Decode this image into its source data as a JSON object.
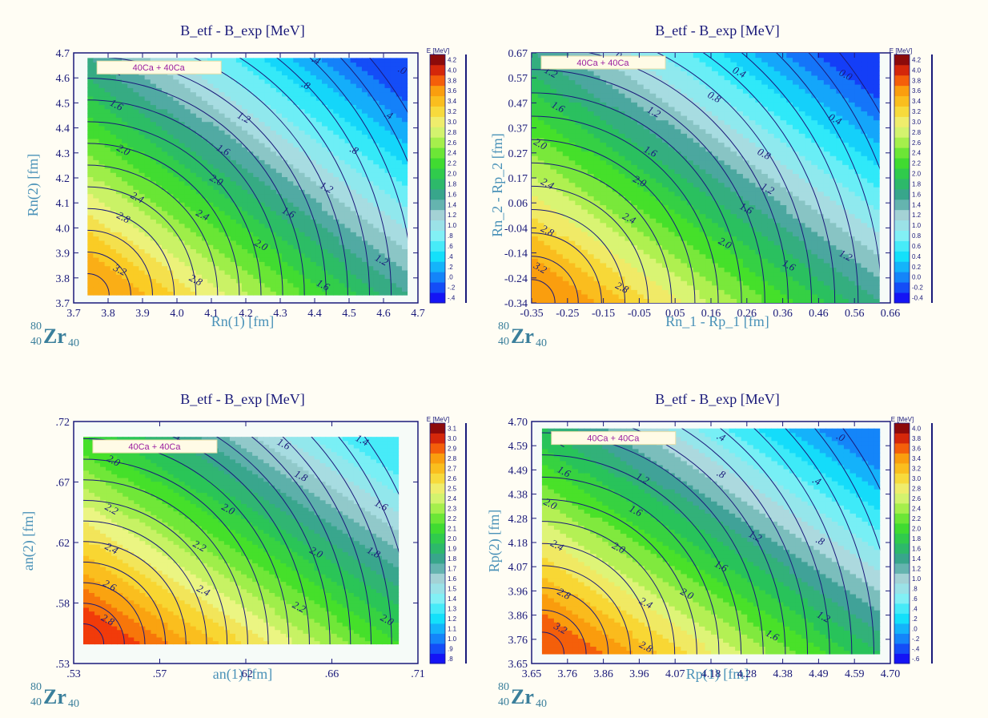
{
  "chart_data": [
    {
      "type": "heatmap",
      "subtype": "filled-contour",
      "title": "B_etf - B_exp [MeV]",
      "xlabel": "Rn(1) [fm]",
      "ylabel": "Rn(2) [fm]",
      "xticks": [
        "3.7",
        "3.8",
        "3.9",
        "4.0",
        "4.1",
        "4.2",
        "4.3",
        "4.4",
        "4.5",
        "4.6",
        "4.7"
      ],
      "yticks": [
        "3.7",
        "3.8",
        "3.9",
        "4.0",
        "4.1",
        "4.2",
        "4.3",
        "4.4",
        "4.5",
        "4.6",
        "4.7"
      ],
      "xlim": [
        3.7,
        4.7
      ],
      "ylim": [
        3.7,
        4.7
      ],
      "data_region": {
        "x": [
          3.74,
          4.67
        ],
        "y": [
          3.73,
          4.68
        ]
      },
      "legend_text": "40Ca + 40Ca",
      "colorbar_title": "E [MeV]",
      "colorbar_labels": [
        "-.4",
        "-.2",
        ".0",
        ".2",
        ".4",
        ".6",
        ".8",
        "1.0",
        "1.2",
        "1.4",
        "1.6",
        "1.8",
        "2.0",
        "2.2",
        "2.4",
        "2.6",
        "2.8",
        "3.0",
        "3.2",
        "3.4",
        "3.6",
        "3.8",
        "4.0",
        "4.2"
      ],
      "colorbar_range": [
        -0.4,
        4.2
      ],
      "value_range": [
        -0.2,
        3.5
      ],
      "contour_labels": [
        {
          "text": "1.2",
          "value": 1.2,
          "x": 3.82,
          "y": 4.62
        },
        {
          "text": "1.6",
          "value": 1.6,
          "x": 3.82,
          "y": 4.48
        },
        {
          "text": "2.0",
          "value": 2.0,
          "x": 3.84,
          "y": 4.3
        },
        {
          "text": "2.4",
          "value": 2.4,
          "x": 3.88,
          "y": 4.11
        },
        {
          "text": "2.8",
          "value": 2.8,
          "x": 3.84,
          "y": 4.03
        },
        {
          "text": "3.2",
          "value": 3.2,
          "x": 3.83,
          "y": 3.82
        },
        {
          "text": ".4",
          "value": 0.4,
          "x": 4.4,
          "y": 4.66
        },
        {
          "text": ".8",
          "value": 0.8,
          "x": 4.37,
          "y": 4.56
        },
        {
          "text": "1.2",
          "value": 1.2,
          "x": 4.19,
          "y": 4.43
        },
        {
          "text": "1.6",
          "value": 1.6,
          "x": 4.13,
          "y": 4.3
        },
        {
          "text": "2.0",
          "value": 2.0,
          "x": 4.11,
          "y": 4.18
        },
        {
          "text": "2.4",
          "value": 2.4,
          "x": 4.07,
          "y": 4.04
        },
        {
          "text": "2.8",
          "value": 2.8,
          "x": 4.05,
          "y": 3.78
        },
        {
          "text": ".0",
          "value": 0.0,
          "x": 4.65,
          "y": 4.62
        },
        {
          "text": ".4",
          "value": 0.4,
          "x": 4.61,
          "y": 4.44
        },
        {
          "text": ".8",
          "value": 0.8,
          "x": 4.51,
          "y": 4.3
        },
        {
          "text": "1.2",
          "value": 1.2,
          "x": 4.43,
          "y": 4.15
        },
        {
          "text": "1.6",
          "value": 1.6,
          "x": 4.32,
          "y": 4.05
        },
        {
          "text": "2.0",
          "value": 2.0,
          "x": 4.24,
          "y": 3.92
        },
        {
          "text": "1.2",
          "value": 1.2,
          "x": 4.59,
          "y": 3.86
        },
        {
          "text": "1.6",
          "value": 1.6,
          "x": 4.42,
          "y": 3.76
        }
      ],
      "nucleus": {
        "mass": "80",
        "charge": "40",
        "symbol": "Zr",
        "neutron": "40"
      }
    },
    {
      "type": "heatmap",
      "subtype": "filled-contour",
      "title": "B_etf - B_exp [MeV]",
      "xlabel": "Rn_1 - Rp_1  [fm]",
      "ylabel": "Rn_2 - Rp_2  [fm]",
      "xticks": [
        "-0.35",
        "-0.25",
        "-0.15",
        "-0.05",
        "0.05",
        "0.16",
        "0.26",
        "0.36",
        "0.46",
        "0.56",
        "0.66"
      ],
      "yticks": [
        "-0.34",
        "-0.24",
        "-0.14",
        "-0.04",
        "0.06",
        "0.17",
        "0.27",
        "0.37",
        "0.47",
        "0.57",
        "0.67"
      ],
      "xlim": [
        -0.35,
        0.66
      ],
      "ylim": [
        -0.34,
        0.67
      ],
      "data_region": {
        "x": [
          -0.35,
          0.63
        ],
        "y": [
          -0.34,
          0.67
        ]
      },
      "legend_text": "40Ca + 40Ca",
      "colorbar_title": "E [MeV]",
      "colorbar_labels": [
        "-0.4",
        "-0.2",
        "0.0",
        "0.2",
        "0.4",
        "0.6",
        "0.8",
        "1.0",
        "1.2",
        "1.4",
        "1.6",
        "1.8",
        "2.0",
        "2.2",
        "2.4",
        "2.6",
        "2.8",
        "3.0",
        "3.2",
        "3.4",
        "3.6",
        "3.8",
        "4.0",
        "4.2"
      ],
      "colorbar_range": [
        -0.4,
        4.2
      ],
      "value_range": [
        -0.25,
        3.6
      ],
      "contour_labels": [
        {
          "text": "1.2",
          "value": 1.2,
          "x": -0.3,
          "y": 0.58
        },
        {
          "text": "1.6",
          "value": 1.6,
          "x": -0.28,
          "y": 0.44
        },
        {
          "text": "2.0",
          "value": 2.0,
          "x": -0.33,
          "y": 0.29
        },
        {
          "text": "2.4",
          "value": 2.4,
          "x": -0.31,
          "y": 0.13
        },
        {
          "text": "2.8",
          "value": 2.8,
          "x": -0.31,
          "y": -0.06
        },
        {
          "text": "3.2",
          "value": 3.2,
          "x": -0.33,
          "y": -0.21
        },
        {
          "text": "0.8",
          "value": 0.8,
          "x": -0.1,
          "y": 0.64
        },
        {
          "text": "1.2",
          "value": 1.2,
          "x": -0.01,
          "y": 0.42
        },
        {
          "text": "1.6",
          "value": 1.6,
          "x": -0.02,
          "y": 0.26
        },
        {
          "text": "2.0",
          "value": 2.0,
          "x": -0.05,
          "y": 0.14
        },
        {
          "text": "2.4",
          "value": 2.4,
          "x": -0.08,
          "y": -0.01
        },
        {
          "text": "2.8",
          "value": 2.8,
          "x": -0.1,
          "y": -0.29
        },
        {
          "text": "0.4",
          "value": 0.4,
          "x": 0.23,
          "y": 0.58
        },
        {
          "text": "0.8",
          "value": 0.8,
          "x": 0.16,
          "y": 0.48
        },
        {
          "text": "0.0",
          "value": 0.0,
          "x": 0.53,
          "y": 0.57
        },
        {
          "text": "0.4",
          "value": 0.4,
          "x": 0.5,
          "y": 0.39
        },
        {
          "text": "0.8",
          "value": 0.8,
          "x": 0.3,
          "y": 0.25
        },
        {
          "text": "1.2",
          "value": 1.2,
          "x": 0.31,
          "y": 0.11
        },
        {
          "text": "1.6",
          "value": 1.6,
          "x": 0.25,
          "y": 0.03
        },
        {
          "text": "2.0",
          "value": 2.0,
          "x": 0.19,
          "y": -0.11
        },
        {
          "text": "1.2",
          "value": 1.2,
          "x": 0.53,
          "y": -0.16
        },
        {
          "text": "1.6",
          "value": 1.6,
          "x": 0.37,
          "y": -0.2
        }
      ],
      "nucleus": {
        "mass": "80",
        "charge": "40",
        "symbol": "Zr",
        "neutron": "40"
      }
    },
    {
      "type": "heatmap",
      "subtype": "filled-contour",
      "title": "B_etf - B_exp [MeV]",
      "xlabel": "an(1) [fm]",
      "ylabel": "an(2) [fm]",
      "xticks": [
        ".53",
        ".57",
        ".62",
        ".66",
        ".71"
      ],
      "yticks": [
        ".53",
        ".58",
        ".62",
        ".67",
        ".72"
      ],
      "xlim": [
        0.53,
        0.71
      ],
      "ylim": [
        0.53,
        0.72
      ],
      "data_region": {
        "x": [
          0.535,
          0.7
        ],
        "y": [
          0.545,
          0.708
        ]
      },
      "legend_text": "40Ca + 40Ca",
      "colorbar_title": "E [MeV]",
      "colorbar_labels": [
        ".8",
        ".9",
        "1.0",
        "1.1",
        "1.2",
        "1.3",
        "1.4",
        "1.5",
        "1.6",
        "1.7",
        "1.8",
        "1.9",
        "2.0",
        "2.1",
        "2.2",
        "2.3",
        "2.4",
        "2.5",
        "2.6",
        "2.7",
        "2.8",
        "2.9",
        "3.0",
        "3.1"
      ],
      "colorbar_range": [
        0.8,
        3.1
      ],
      "value_range": [
        1.3,
        2.95
      ],
      "contour_labels": [
        {
          "text": "1.8",
          "value": 1.8,
          "x": 0.585,
          "y": 0.702
        },
        {
          "text": "1.6",
          "value": 1.6,
          "x": 0.639,
          "y": 0.7
        },
        {
          "text": "1.4",
          "value": 1.4,
          "x": 0.68,
          "y": 0.703
        },
        {
          "text": "2.0",
          "value": 2.0,
          "x": 0.55,
          "y": 0.687
        },
        {
          "text": "1.8",
          "value": 1.8,
          "x": 0.648,
          "y": 0.675
        },
        {
          "text": "1.6",
          "value": 1.6,
          "x": 0.69,
          "y": 0.652
        },
        {
          "text": "2.2",
          "value": 2.2,
          "x": 0.549,
          "y": 0.649
        },
        {
          "text": "2.0",
          "value": 2.0,
          "x": 0.61,
          "y": 0.649
        },
        {
          "text": "1.8",
          "value": 1.8,
          "x": 0.686,
          "y": 0.615
        },
        {
          "text": "2.4",
          "value": 2.4,
          "x": 0.549,
          "y": 0.618
        },
        {
          "text": "2.2",
          "value": 2.2,
          "x": 0.595,
          "y": 0.62
        },
        {
          "text": "2.0",
          "value": 2.0,
          "x": 0.656,
          "y": 0.615
        },
        {
          "text": "2.6",
          "value": 2.6,
          "x": 0.548,
          "y": 0.589
        },
        {
          "text": "2.4",
          "value": 2.4,
          "x": 0.597,
          "y": 0.585
        },
        {
          "text": "2.2",
          "value": 2.2,
          "x": 0.647,
          "y": 0.572
        },
        {
          "text": "2.0",
          "value": 2.0,
          "x": 0.693,
          "y": 0.562
        },
        {
          "text": "2.8",
          "value": 2.8,
          "x": 0.547,
          "y": 0.562
        }
      ],
      "nucleus": {
        "mass": "80",
        "charge": "40",
        "symbol": "Zr",
        "neutron": "40"
      }
    },
    {
      "type": "heatmap",
      "subtype": "filled-contour",
      "title": "B_etf - B_exp [MeV]",
      "xlabel": "Rp(1) [fm]",
      "ylabel": "Rp(2) [fm]",
      "xticks": [
        "3.65",
        "3.76",
        "3.86",
        "3.96",
        "4.07",
        "4.18",
        "4.28",
        "4.38",
        "4.49",
        "4.59",
        "4.70"
      ],
      "yticks": [
        "3.65",
        "3.76",
        "3.86",
        "3.96",
        "4.07",
        "4.18",
        "4.28",
        "4.38",
        "4.49",
        "4.59",
        "4.70"
      ],
      "xlim": [
        3.65,
        4.7
      ],
      "ylim": [
        3.65,
        4.7
      ],
      "data_region": {
        "x": [
          3.68,
          4.67
        ],
        "y": [
          3.69,
          4.67
        ]
      },
      "legend_text": "40Ca + 40Ca",
      "colorbar_title": "E [MeV]",
      "colorbar_labels": [
        "-.6",
        "-.4",
        "-.2",
        ".0",
        ".2",
        ".4",
        ".6",
        ".8",
        "1.0",
        "1.2",
        "1.4",
        "1.6",
        "1.8",
        "2.0",
        "2.2",
        "2.4",
        "2.6",
        "2.8",
        "3.0",
        "3.2",
        "3.4",
        "3.6",
        "3.8",
        "4.0"
      ],
      "colorbar_range": [
        -0.6,
        4.0
      ],
      "value_range": [
        -0.2,
        3.6
      ],
      "contour_labels": [
        {
          "text": "1.2",
          "value": 1.2,
          "x": 3.73,
          "y": 4.6
        },
        {
          "text": "1.6",
          "value": 1.6,
          "x": 3.74,
          "y": 4.47
        },
        {
          "text": "2.0",
          "value": 2.0,
          "x": 3.7,
          "y": 4.33
        },
        {
          "text": "2.4",
          "value": 2.4,
          "x": 3.72,
          "y": 4.15
        },
        {
          "text": "2.8",
          "value": 2.8,
          "x": 3.74,
          "y": 3.94
        },
        {
          "text": "3.2",
          "value": 3.2,
          "x": 3.73,
          "y": 3.79
        },
        {
          "text": ".4",
          "value": 0.4,
          "x": 4.2,
          "y": 4.62
        },
        {
          "text": ".8",
          "value": 0.8,
          "x": 4.2,
          "y": 4.46
        },
        {
          "text": "1.2",
          "value": 1.2,
          "x": 3.97,
          "y": 4.44
        },
        {
          "text": "1.6",
          "value": 1.6,
          "x": 3.95,
          "y": 4.3
        },
        {
          "text": "2.0",
          "value": 2.0,
          "x": 3.9,
          "y": 4.14
        },
        {
          "text": "2.4",
          "value": 2.4,
          "x": 3.98,
          "y": 3.9
        },
        {
          "text": "2.8",
          "value": 2.8,
          "x": 3.98,
          "y": 3.71
        },
        {
          "text": ".0",
          "value": 0.0,
          "x": 4.55,
          "y": 4.62
        },
        {
          "text": ".4",
          "value": 0.4,
          "x": 4.48,
          "y": 4.43
        },
        {
          "text": ".8",
          "value": 0.8,
          "x": 4.49,
          "y": 4.17
        },
        {
          "text": "1.2",
          "value": 1.2,
          "x": 4.3,
          "y": 4.19
        },
        {
          "text": "1.6",
          "value": 1.6,
          "x": 4.2,
          "y": 4.06
        },
        {
          "text": "2.0",
          "value": 2.0,
          "x": 4.1,
          "y": 3.94
        },
        {
          "text": "1.2",
          "value": 1.2,
          "x": 4.5,
          "y": 3.84
        },
        {
          "text": "1.6",
          "value": 1.6,
          "x": 4.35,
          "y": 3.76
        }
      ],
      "nucleus": {
        "mass": "80",
        "charge": "40",
        "symbol": "Zr",
        "neutron": "40"
      }
    }
  ]
}
